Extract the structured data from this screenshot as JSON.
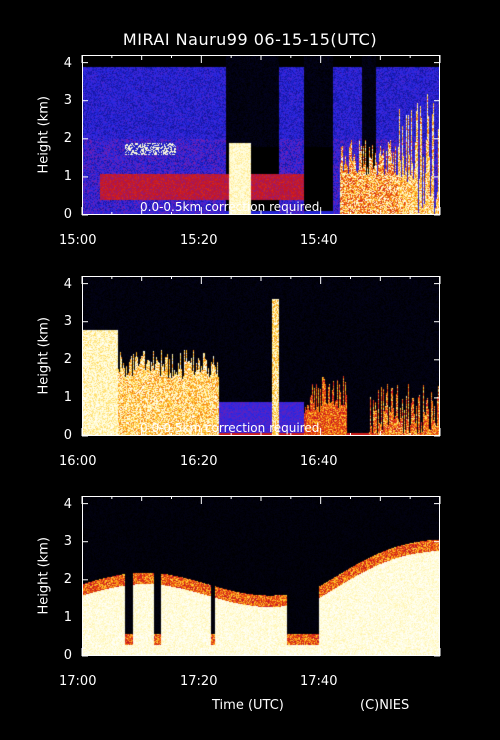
{
  "title": "MIRAI Nauru99 06-15-15(UTC)",
  "xlabel": "Time (UTC)",
  "credit": "(C)NIES",
  "correction_note": "0.0-0.5km correction required",
  "chart_data": [
    {
      "type": "heatmap",
      "ylabel": "Height (km)",
      "yticks": [
        "0",
        "1",
        "2",
        "3",
        "4"
      ],
      "xticks": [
        "15:00",
        "15:20",
        "15:40"
      ],
      "xlim": [
        "15:00",
        "16:00"
      ],
      "ylim": [
        0,
        4.2
      ],
      "annotation": "0.0-0.5km correction required"
    },
    {
      "type": "heatmap",
      "ylabel": "Height (km)",
      "yticks": [
        "0",
        "1",
        "2",
        "3",
        "4"
      ],
      "xticks": [
        "16:00",
        "16:20",
        "16:40"
      ],
      "xlim": [
        "16:00",
        "17:00"
      ],
      "ylim": [
        0,
        4.2
      ],
      "annotation": "0.0-0.5km correction required"
    },
    {
      "type": "heatmap",
      "ylabel": "Height (km)",
      "yticks": [
        "0",
        "1",
        "2",
        "3",
        "4"
      ],
      "xticks": [
        "17:00",
        "17:20",
        "17:40"
      ],
      "xlim": [
        "17:00",
        "18:00"
      ],
      "ylim": [
        0,
        4.2
      ],
      "annotation": ""
    }
  ]
}
